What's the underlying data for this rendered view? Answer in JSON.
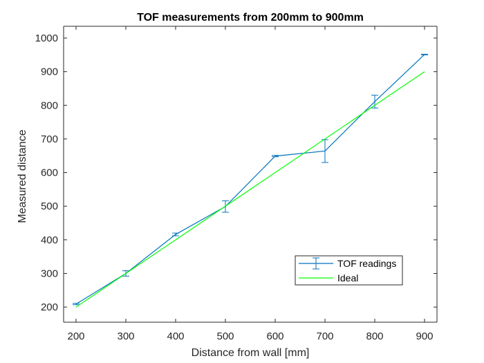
{
  "chart_data": {
    "type": "line",
    "title": "TOF measurements from 200mm to 900mm",
    "xlabel": "Distance from wall [mm]",
    "ylabel": "Measured distance",
    "xlim": [
      175,
      925
    ],
    "ylim": [
      155,
      1035
    ],
    "xticks": [
      200,
      300,
      400,
      500,
      600,
      700,
      800,
      900
    ],
    "yticks": [
      200,
      300,
      400,
      500,
      600,
      700,
      800,
      900,
      1000
    ],
    "grid": false,
    "legend_position": "bottom-right",
    "series": [
      {
        "name": "TOF readings",
        "color": "#0072BD",
        "errorbars": true,
        "x": [
          200,
          300,
          400,
          500,
          600,
          700,
          800,
          900
        ],
        "y": [
          209,
          300,
          416,
          499,
          649,
          664,
          811,
          951
        ],
        "err": [
          2,
          8,
          4,
          17,
          2,
          34,
          19,
          1
        ]
      },
      {
        "name": "Ideal",
        "color": "#00FF00",
        "errorbars": false,
        "x": [
          200,
          900
        ],
        "y": [
          200,
          900
        ]
      }
    ]
  }
}
